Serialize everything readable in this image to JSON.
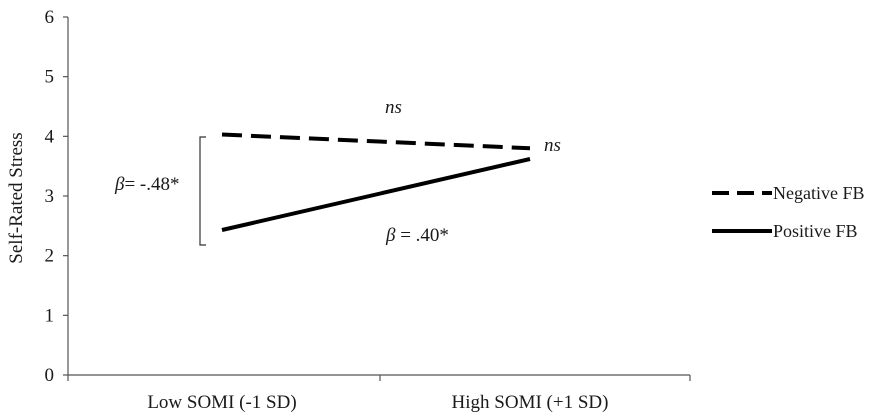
{
  "chart_data": {
    "type": "line",
    "title": "",
    "xlabel": "",
    "ylabel": "Self-Rated Stress",
    "ylim": [
      0,
      6
    ],
    "yticks": [
      0,
      1,
      2,
      3,
      4,
      5,
      6
    ],
    "categories": [
      "Low SOMI (-1 SD)",
      "High SOMI (+1 SD)"
    ],
    "grid": false,
    "legend_position": "right",
    "series": [
      {
        "name": "Negative FB",
        "values": [
          4.03,
          3.8
        ],
        "line_style": "dashed",
        "color": "#000000"
      },
      {
        "name": "Positive FB",
        "values": [
          2.43,
          3.62
        ],
        "line_style": "solid",
        "color": "#000000"
      }
    ],
    "annotations": {
      "beta_low_symbol": "β",
      "beta_low_value": "= -.48*",
      "beta_pos_symbol": "β",
      "beta_pos_value": " = .40*",
      "ns_top": "ns",
      "ns_right": "ns"
    }
  }
}
